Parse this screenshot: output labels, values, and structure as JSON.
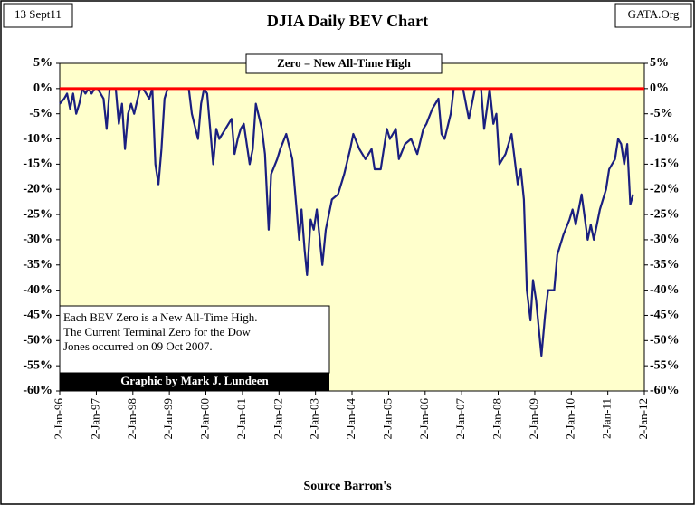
{
  "chart_data": {
    "type": "line",
    "title": "DJIA Daily BEV Chart",
    "annotations": {
      "date": "13 Sept11",
      "site": "GATA.Org",
      "zero_note": "Zero = New All-Time High",
      "note_lines": [
        "Each BEV Zero is a New All-Time High.",
        "The Current Terminal Zero for the Dow",
        "Jones occurred on 09 Oct 2007."
      ],
      "credit": "Graphic by Mark J. Lundeen",
      "source": "Source Barron's"
    },
    "reference_line": {
      "value": 0,
      "color": "#ff0000"
    },
    "background": "#ffffcc",
    "x": [
      "1996-01-02",
      "1996-02-15",
      "1996-03-15",
      "1996-04-15",
      "1996-05-15",
      "1996-06-15",
      "1996-07-15",
      "1996-08-15",
      "1996-09-15",
      "1996-10-15",
      "1996-11-15",
      "1996-12-15",
      "1997-01-15",
      "1997-03-15",
      "1997-04-15",
      "1997-05-15",
      "1997-07-15",
      "1997-08-15",
      "1997-09-15",
      "1997-10-15",
      "1997-11-15",
      "1997-12-15",
      "1998-01-15",
      "1998-03-15",
      "1998-04-15",
      "1998-06-15",
      "1998-07-15",
      "1998-08-15",
      "1998-09-15",
      "1998-10-15",
      "1998-11-15",
      "1998-12-15",
      "1999-01-15",
      "1999-03-15",
      "1999-05-15",
      "1999-07-15",
      "1999-08-15",
      "1999-10-15",
      "1999-11-15",
      "1999-12-15",
      "2000-01-15",
      "2000-03-15",
      "2000-04-15",
      "2000-05-15",
      "2000-07-15",
      "2000-09-15",
      "2000-10-15",
      "2000-11-15",
      "2000-12-15",
      "2001-01-15",
      "2001-03-15",
      "2001-04-15",
      "2001-05-15",
      "2001-07-15",
      "2001-08-15",
      "2001-09-21",
      "2001-10-15",
      "2001-12-15",
      "2002-01-15",
      "2002-03-15",
      "2002-05-15",
      "2002-07-23",
      "2002-08-15",
      "2002-09-15",
      "2002-10-09",
      "2002-11-15",
      "2002-12-15",
      "2003-01-15",
      "2003-03-11",
      "2003-04-15",
      "2003-06-15",
      "2003-08-15",
      "2003-10-15",
      "2003-12-15",
      "2004-01-15",
      "2004-03-15",
      "2004-05-15",
      "2004-07-15",
      "2004-08-15",
      "2004-10-15",
      "2004-12-15",
      "2005-01-15",
      "2005-03-15",
      "2005-04-15",
      "2005-06-15",
      "2005-08-15",
      "2005-10-15",
      "2005-12-15",
      "2006-01-15",
      "2006-03-15",
      "2006-05-15",
      "2006-06-15",
      "2006-07-15",
      "2006-09-15",
      "2006-10-15",
      "2006-12-15",
      "2007-01-15",
      "2007-03-15",
      "2007-05-15",
      "2007-07-15",
      "2007-08-15",
      "2007-10-09",
      "2007-11-15",
      "2007-12-15",
      "2008-01-15",
      "2008-03-15",
      "2008-05-15",
      "2008-07-15",
      "2008-08-15",
      "2008-09-15",
      "2008-10-15",
      "2008-11-20",
      "2008-12-15",
      "2009-01-15",
      "2009-03-09",
      "2009-04-15",
      "2009-05-15",
      "2009-07-15",
      "2009-08-15",
      "2009-10-15",
      "2009-12-15",
      "2010-01-15",
      "2010-02-15",
      "2010-04-15",
      "2010-06-15",
      "2010-07-15",
      "2010-08-15",
      "2010-10-15",
      "2010-12-15",
      "2011-01-15",
      "2011-03-15",
      "2011-04-15",
      "2011-05-15",
      "2011-06-15",
      "2011-07-15",
      "2011-08-15",
      "2011-09-13"
    ],
    "series": [
      {
        "name": "DJIA BEV",
        "color": "#1a1f80",
        "values": [
          -3,
          -2,
          -1,
          -4,
          -1,
          -5,
          -3,
          0,
          -1,
          0,
          -1,
          0,
          0,
          -2,
          -8,
          0,
          0,
          -7,
          -3,
          -12,
          -5,
          -3,
          -5,
          0,
          0,
          -2,
          0,
          -15,
          -19,
          -12,
          -2,
          0,
          0,
          0,
          0,
          0,
          -5,
          -10,
          -3,
          0,
          -1,
          -15,
          -8,
          -10,
          -8,
          -6,
          -13,
          -10,
          -8,
          -7,
          -15,
          -12,
          -3,
          -8,
          -13,
          -28,
          -17,
          -14,
          -12,
          -9,
          -14,
          -30,
          -24,
          -32,
          -37,
          -26,
          -28,
          -24,
          -35,
          -28,
          -22,
          -21,
          -17,
          -12,
          -9,
          -12,
          -14,
          -12,
          -16,
          -16,
          -8,
          -10,
          -8,
          -14,
          -11,
          -10,
          -13,
          -8,
          -7,
          -4,
          -2,
          -9,
          -10,
          -5,
          0,
          0,
          0,
          -6,
          0,
          0,
          -8,
          0,
          -7,
          -5,
          -15,
          -13,
          -9,
          -19,
          -16,
          -22,
          -40,
          -46,
          -38,
          -42,
          -53,
          -45,
          -40,
          -40,
          -33,
          -29,
          -26,
          -24,
          -27,
          -21,
          -30,
          -27,
          -30,
          -24,
          -20,
          -16,
          -14,
          -10,
          -11,
          -15,
          -11,
          -23,
          -21
        ]
      }
    ],
    "xlim": [
      "1996-01-02",
      "2012-01-02"
    ],
    "xticks": [
      {
        "value": "1996-01-02",
        "label": "2-Jan-96"
      },
      {
        "value": "1997-01-02",
        "label": "2-Jan-97"
      },
      {
        "value": "1998-01-02",
        "label": "2-Jan-98"
      },
      {
        "value": "1999-01-02",
        "label": "2-Jan-99"
      },
      {
        "value": "2000-01-02",
        "label": "2-Jan-00"
      },
      {
        "value": "2001-01-02",
        "label": "2-Jan-01"
      },
      {
        "value": "2002-01-02",
        "label": "2-Jan-02"
      },
      {
        "value": "2003-01-02",
        "label": "2-Jan-03"
      },
      {
        "value": "2004-01-02",
        "label": "2-Jan-04"
      },
      {
        "value": "2005-01-02",
        "label": "2-Jan-05"
      },
      {
        "value": "2006-01-02",
        "label": "2-Jan-06"
      },
      {
        "value": "2007-01-02",
        "label": "2-Jan-07"
      },
      {
        "value": "2008-01-02",
        "label": "2-Jan-08"
      },
      {
        "value": "2009-01-02",
        "label": "2-Jan-09"
      },
      {
        "value": "2010-01-02",
        "label": "2-Jan-10"
      },
      {
        "value": "2011-01-02",
        "label": "2-Jan-11"
      },
      {
        "value": "2012-01-02",
        "label": "2-Jan-12"
      }
    ],
    "ylim": [
      -60,
      5
    ],
    "yticks": [
      {
        "value": 5,
        "label": "5%"
      },
      {
        "value": 0,
        "label": "0%"
      },
      {
        "value": -5,
        "label": "-5%"
      },
      {
        "value": -10,
        "label": "-10%"
      },
      {
        "value": -15,
        "label": "-15%"
      },
      {
        "value": -20,
        "label": "-20%"
      },
      {
        "value": -25,
        "label": "-25%"
      },
      {
        "value": -30,
        "label": "-30%"
      },
      {
        "value": -35,
        "label": "-35%"
      },
      {
        "value": -40,
        "label": "-40%"
      },
      {
        "value": -45,
        "label": "-45%"
      },
      {
        "value": -50,
        "label": "-50%"
      },
      {
        "value": -55,
        "label": "-55%"
      },
      {
        "value": -60,
        "label": "-60%"
      }
    ],
    "y2lim": [
      -60,
      5
    ],
    "y2ticks": [
      {
        "value": 5,
        "label": "5%"
      },
      {
        "value": 0,
        "label": "0%"
      },
      {
        "value": -5,
        "label": "-5%"
      },
      {
        "value": -10,
        "label": "-10%"
      },
      {
        "value": -15,
        "label": "-15%"
      },
      {
        "value": -20,
        "label": "-20%"
      },
      {
        "value": -25,
        "label": "-25%"
      },
      {
        "value": -30,
        "label": "-30%"
      },
      {
        "value": -35,
        "label": "-35%"
      },
      {
        "value": -40,
        "label": "-40%"
      },
      {
        "value": -45,
        "label": "-45%"
      },
      {
        "value": -50,
        "label": "-50%"
      },
      {
        "value": -55,
        "label": "-55%"
      },
      {
        "value": -60,
        "label": "-60%"
      }
    ]
  }
}
